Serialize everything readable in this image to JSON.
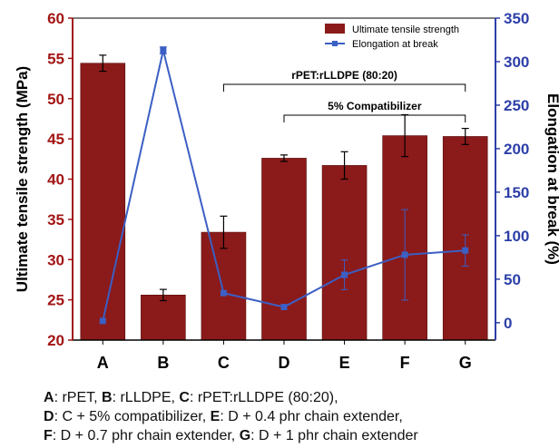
{
  "chart_data": {
    "type": "bar+line",
    "categories": [
      "A",
      "B",
      "C",
      "D",
      "E",
      "F",
      "G"
    ],
    "series": [
      {
        "name": "Ultimate tensile strength",
        "type": "bar",
        "axis": "left",
        "values": [
          54.4,
          25.6,
          33.4,
          42.6,
          41.7,
          45.4,
          45.3
        ],
        "errors": [
          1.0,
          0.7,
          2.0,
          0.4,
          1.7,
          2.6,
          1.0
        ]
      },
      {
        "name": "Elongation at break",
        "type": "line",
        "axis": "right",
        "values": [
          2,
          313,
          34,
          18,
          55,
          78,
          83
        ],
        "errors": [
          0,
          4,
          0,
          0,
          17,
          52,
          18
        ]
      }
    ],
    "ylabel_left": "Ultimate tensile strength (MPa)",
    "ylabel_right": "Elongation at break (%)",
    "ylim_left": [
      20,
      60
    ],
    "yticks_left": [
      "20",
      "25",
      "30",
      "35",
      "40",
      "45",
      "50",
      "55",
      "60"
    ],
    "ylim_right": [
      -20,
      350
    ],
    "yticks_right": [
      "0",
      "50",
      "100",
      "150",
      "200",
      "250",
      "300",
      "350"
    ],
    "legend_position": "top-right",
    "brackets": [
      {
        "label": "rPET:rLLDPE (80:20)",
        "from": "C",
        "to": "G"
      },
      {
        "label": "5% Compatibilizer",
        "from": "D",
        "to": "G"
      }
    ],
    "colors": {
      "bar": "#8b1a1a",
      "line": "#3b5fc4",
      "left_axis": "#a31515",
      "right_axis": "#2d3fa8"
    }
  },
  "caption": {
    "line1": [
      {
        "key": "A",
        "text": ": rPET, "
      },
      {
        "key": "B",
        "text": ": rLLDPE, "
      },
      {
        "key": "C",
        "text": ": rPET:rLLDPE (80:20),"
      }
    ],
    "line2": [
      {
        "key": "D",
        "text": ": C + 5% compatibilizer, "
      },
      {
        "key": "E",
        "text": ": D + 0.4 phr chain extender,"
      }
    ],
    "line3": [
      {
        "key": "F",
        "text": ": D + 0.7 phr chain extender, "
      },
      {
        "key": "G",
        "text": ": D + 1 phr chain extender"
      }
    ]
  }
}
